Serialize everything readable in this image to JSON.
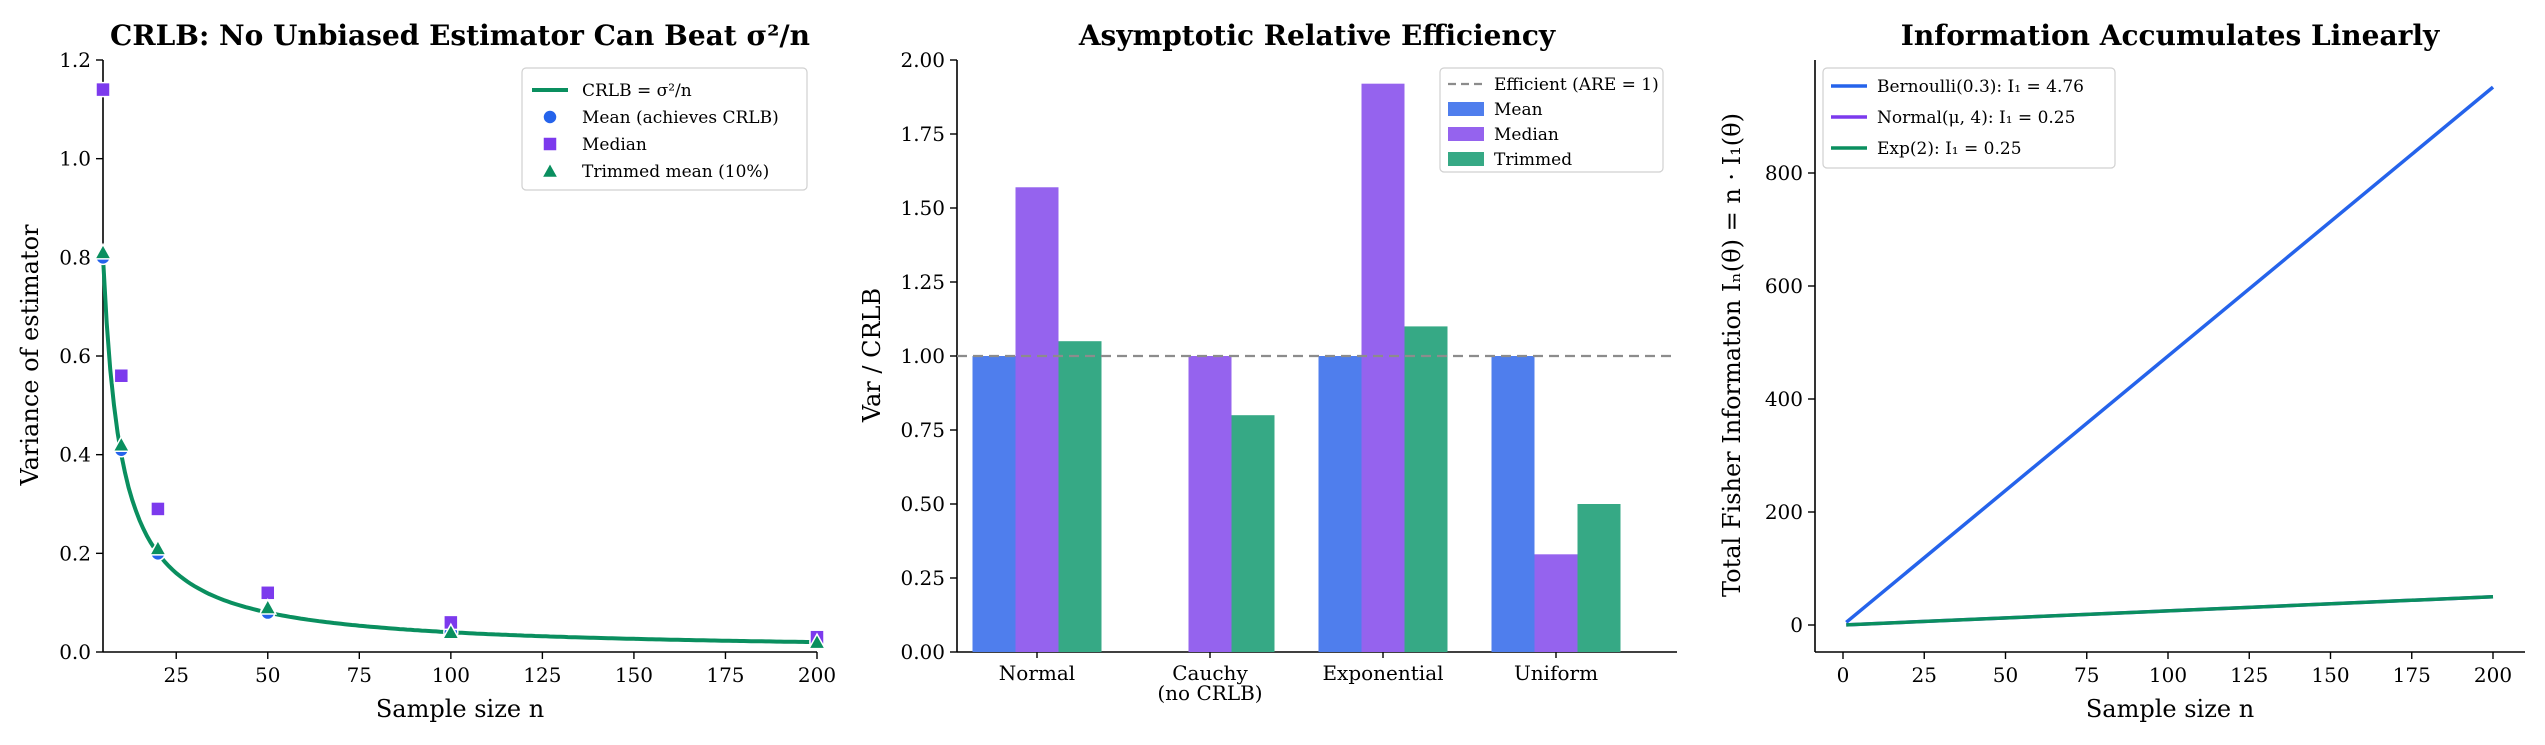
{
  "colors": {
    "green": "#0a8f5f",
    "blue": "#2563eb",
    "purple": "#7c3aed",
    "bar_blue": "#4f7eed",
    "bar_purple": "#9563ee",
    "bar_green": "#36a985",
    "ref_line": "#8c8c8c"
  },
  "chart_data": [
    {
      "type": "line",
      "title": "CRLB: No Unbiased Estimator Can Beat σ²/n",
      "xlabel": "Sample size n",
      "ylabel": "Variance of estimator",
      "xlim": [
        5,
        200
      ],
      "ylim": [
        0,
        1.2
      ],
      "xticks": [
        25,
        50,
        75,
        100,
        125,
        150,
        175,
        200
      ],
      "yticks": [
        0.0,
        0.2,
        0.4,
        0.6,
        0.8,
        1.0,
        1.2
      ],
      "grid": false,
      "legend_position": "top-right",
      "crlb_curve": {
        "name": "CRLB = σ²/n",
        "sigma2": 4,
        "x_range": [
          5,
          200
        ]
      },
      "series": [
        {
          "name": "Mean (achieves CRLB)",
          "marker": "circle",
          "x": [
            5,
            10,
            20,
            50,
            100,
            200
          ],
          "y": [
            0.8,
            0.41,
            0.2,
            0.08,
            0.04,
            0.02
          ]
        },
        {
          "name": "Median",
          "marker": "square",
          "x": [
            5,
            10,
            20,
            50,
            100,
            200
          ],
          "y": [
            1.14,
            0.56,
            0.29,
            0.12,
            0.06,
            0.03
          ]
        },
        {
          "name": "Trimmed mean (10%)",
          "marker": "triangle",
          "x": [
            5,
            10,
            20,
            50,
            100,
            200
          ],
          "y": [
            0.81,
            0.42,
            0.21,
            0.09,
            0.04,
            0.02
          ]
        }
      ]
    },
    {
      "type": "bar",
      "title": "Asymptotic Relative Efficiency",
      "xlabel": "",
      "ylabel": "Var / CRLB",
      "ylim": [
        0,
        2.0
      ],
      "yticks": [
        "0.00",
        "0.25",
        "0.50",
        "0.75",
        "1.00",
        "1.25",
        "1.50",
        "1.75",
        "2.00"
      ],
      "grid": false,
      "legend_position": "top-right",
      "categories": [
        [
          "Normal"
        ],
        [
          "Cauchy",
          "(no CRLB)"
        ],
        [
          "Exponential"
        ],
        [
          "Uniform"
        ]
      ],
      "reference_line": {
        "name": "Efficient (ARE = 1)",
        "y": 1.0
      },
      "series": [
        {
          "name": "Mean",
          "values": [
            1.0,
            null,
            1.0,
            1.0
          ]
        },
        {
          "name": "Median",
          "values": [
            1.57,
            1.0,
            1.92,
            0.33
          ]
        },
        {
          "name": "Trimmed",
          "values": [
            1.05,
            0.8,
            1.1,
            0.5
          ]
        }
      ]
    },
    {
      "type": "line",
      "title": "Information Accumulates Linearly",
      "xlabel": "Sample size n",
      "ylabel": "Total Fisher Information Iₙ(θ) = n · I₁(θ)",
      "xlim": [
        0,
        200
      ],
      "ylim": [
        0,
        950
      ],
      "xticks": [
        0,
        25,
        50,
        75,
        100,
        125,
        150,
        175,
        200
      ],
      "yticks": [
        0,
        200,
        400,
        600,
        800
      ],
      "grid": false,
      "legend_position": "top-left",
      "series": [
        {
          "name": "Bernoulli(0.3): I₁ = 4.76",
          "I1": 4.76,
          "x": [
            1,
            200
          ]
        },
        {
          "name": "Normal(μ, 4): I₁ = 0.25",
          "I1": 0.25,
          "x": [
            1,
            200
          ]
        },
        {
          "name": "Exp(2): I₁ = 0.25",
          "I1": 0.25,
          "x": [
            1,
            200
          ]
        }
      ]
    }
  ]
}
